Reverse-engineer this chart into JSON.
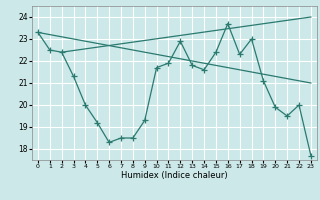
{
  "xlabel": "Humidex (Indice chaleur)",
  "bg_color": "#cce8e8",
  "grid_color": "#ffffff",
  "line_color": "#2a7a70",
  "xlim": [
    -0.5,
    23.5
  ],
  "ylim": [
    17.5,
    24.5
  ],
  "yticks": [
    18,
    19,
    20,
    21,
    22,
    23,
    24
  ],
  "xticks": [
    0,
    1,
    2,
    3,
    4,
    5,
    6,
    7,
    8,
    9,
    10,
    11,
    12,
    13,
    14,
    15,
    16,
    17,
    18,
    19,
    20,
    21,
    22,
    23
  ],
  "line1_x": [
    0,
    23
  ],
  "line1_y": [
    23.3,
    21.0
  ],
  "line2_x": [
    2,
    23
  ],
  "line2_y": [
    22.4,
    24.0
  ],
  "line3_x": [
    0,
    1,
    2,
    3,
    4,
    5,
    6,
    7,
    8,
    9,
    10,
    11,
    12,
    13,
    14,
    15,
    16,
    17,
    18,
    19,
    20,
    21,
    22,
    23
  ],
  "line3_y": [
    23.3,
    22.5,
    22.4,
    21.3,
    20.0,
    19.2,
    18.3,
    18.5,
    18.5,
    19.3,
    21.7,
    21.9,
    22.9,
    21.8,
    21.6,
    22.4,
    23.7,
    22.3,
    23.0,
    21.1,
    19.9,
    19.5,
    20.0,
    17.7
  ]
}
